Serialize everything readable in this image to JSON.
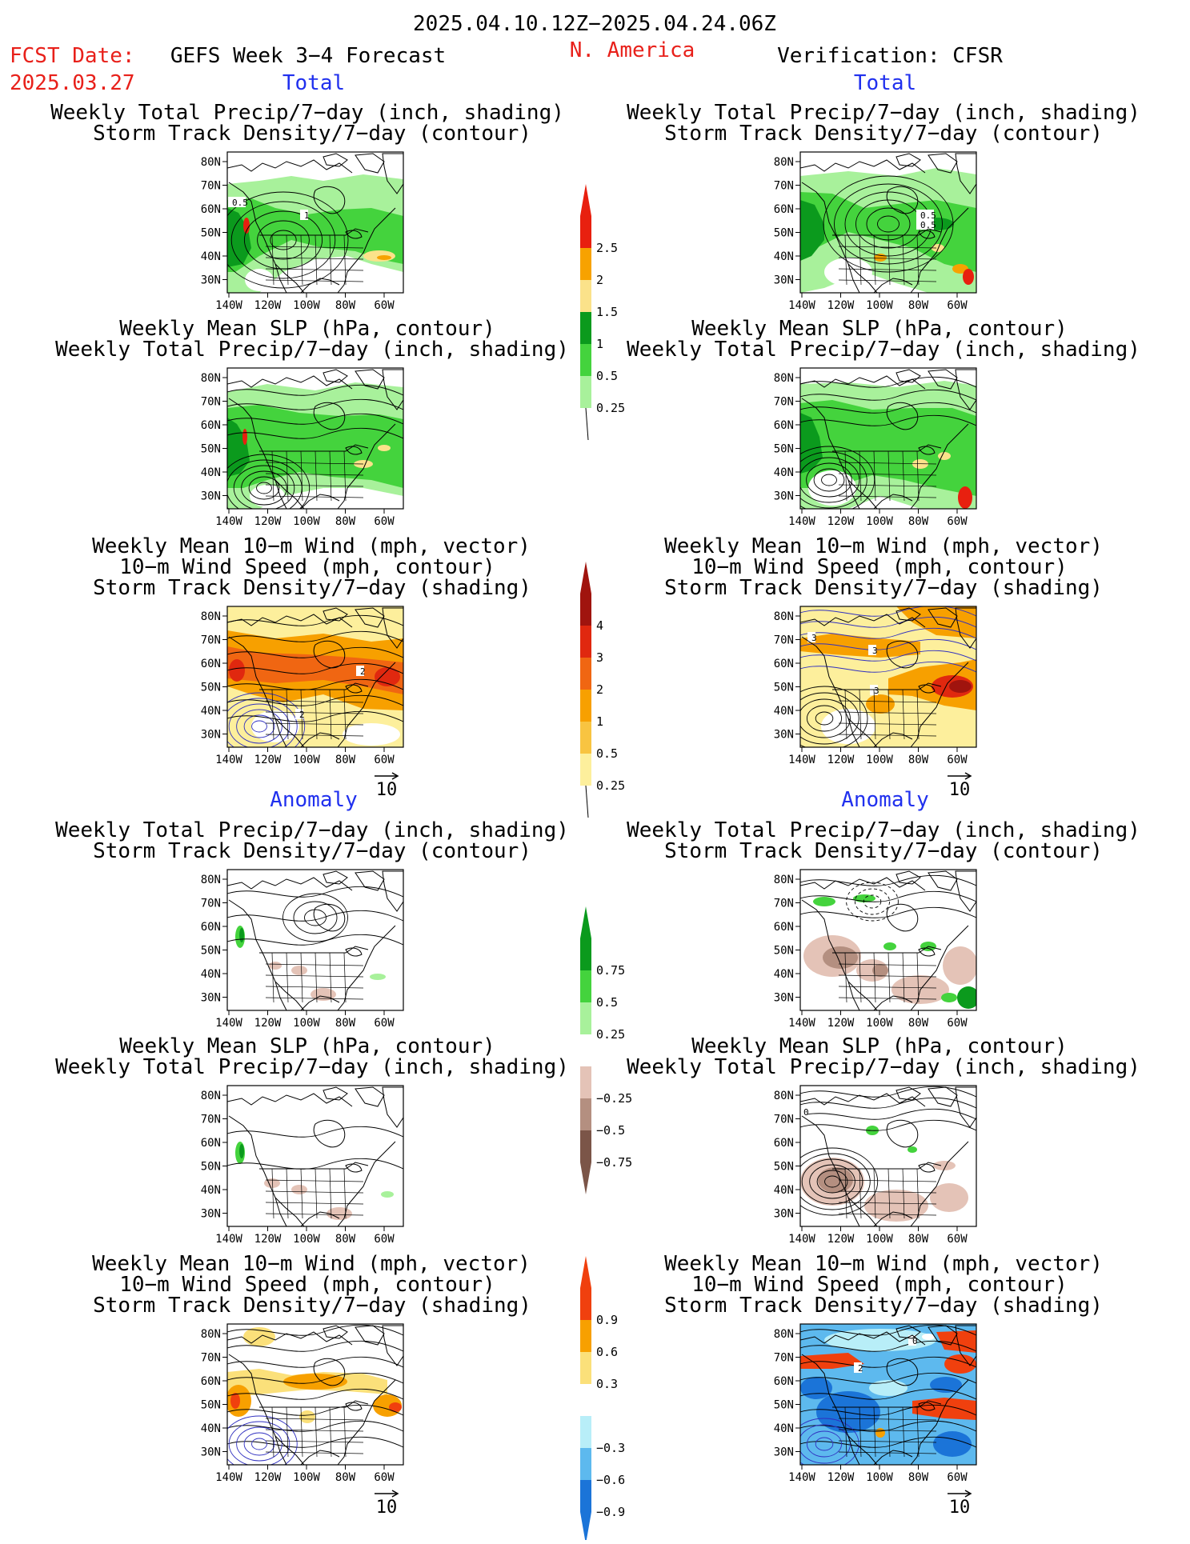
{
  "header": {
    "period": "2025.04.10.12Z−2025.04.24.06Z",
    "fcst_label": "FCST Date:",
    "fcst_date": "2025.03.27",
    "forecast_name": "GEFS Week 3−4 Forecast",
    "region": "N. America",
    "verification": "Verification: CFSR"
  },
  "sections": {
    "total": "Total",
    "anomaly": "Anomaly"
  },
  "panel_titles": {
    "precip_storm": [
      "Weekly Total Precip/7−day (inch, shading)",
      "Storm Track Density/7−day (contour)"
    ],
    "slp_precip": [
      "Weekly Mean SLP (hPa, contour)",
      "Weekly Total Precip/7−day (inch, shading)"
    ],
    "wind_storm": [
      "Weekly Mean 10−m Wind (mph, vector)",
      "10−m Wind Speed (mph, contour)",
      "Storm Track Density/7−day (shading)"
    ]
  },
  "axes": {
    "lat_ticks": [
      "80N",
      "70N",
      "60N",
      "50N",
      "40N",
      "30N"
    ],
    "lon_ticks": [
      "140W",
      "120W",
      "100W",
      "80W",
      "60W"
    ]
  },
  "vector_ref": "10",
  "contour_labels": {
    "left_total_precip": [
      "0.5",
      "1"
    ],
    "right_total_precip": [
      "0.5",
      "0.5"
    ],
    "left_total_wind": [
      "2",
      "2"
    ],
    "right_total_wind": [
      "3",
      "3",
      "3"
    ],
    "right_anom_slp": [
      "0"
    ],
    "right_anom_wind": [
      "0",
      "2"
    ]
  },
  "colorbars": {
    "precip_total": {
      "labels": [
        "2.5",
        "2",
        "1.5",
        "1",
        "0.5",
        "0.25"
      ],
      "colors": [
        "#e8200f",
        "#f7a200",
        "#fbe28a",
        "#0b9a1d",
        "#44d33d",
        "#a8f19b"
      ]
    },
    "storm_total": {
      "labels": [
        "4",
        "3",
        "2",
        "1",
        "0.5",
        "0.25"
      ],
      "colors": [
        "#a0140e",
        "#e0280f",
        "#f06612",
        "#f7a000",
        "#f8c441",
        "#fdef9c"
      ]
    },
    "precip_anom": {
      "labels": [
        "0.75",
        "0.5",
        "0.25",
        "−0.25",
        "−0.5",
        "−0.75"
      ],
      "colors": [
        "#0b9a1d",
        "#44d33d",
        "#a8f19b",
        "#ffffff",
        "#e4c3b7",
        "#b48f80",
        "#7b5548"
      ]
    },
    "storm_anom": {
      "labels": [
        "0.9",
        "0.6",
        "0.3",
        "−0.3",
        "−0.6",
        "−0.9"
      ],
      "colors": [
        "#f0400e",
        "#f7a000",
        "#fbe07a",
        "#ffffff",
        "#b8eef8",
        "#5db9ee",
        "#1b74d8"
      ]
    }
  }
}
